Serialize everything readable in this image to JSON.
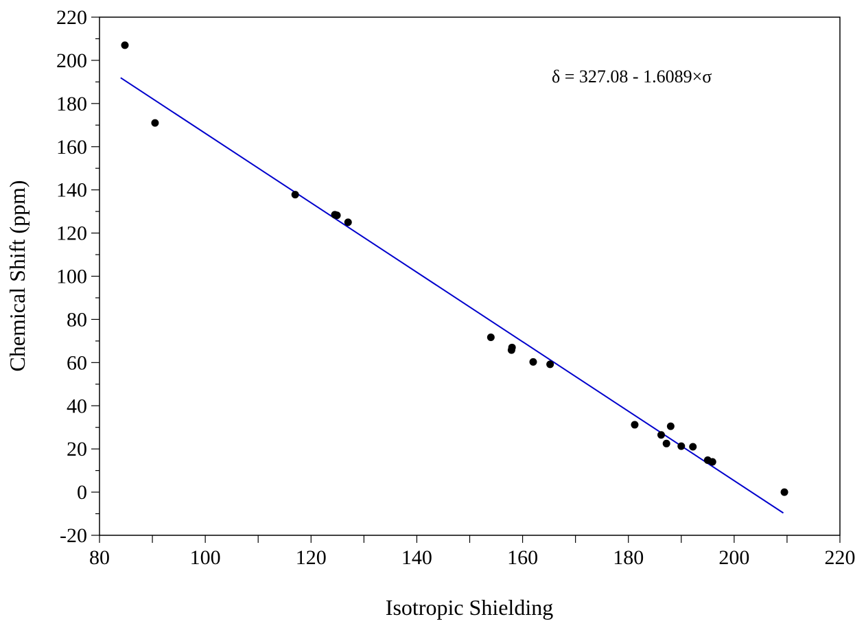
{
  "chart_data": {
    "type": "scatter",
    "xlabel": "Isotropic Shielding",
    "ylabel": "Chemical Shift (ppm)",
    "xlim": [
      80,
      220
    ],
    "ylim": [
      -20,
      220
    ],
    "x_ticks": [
      "80",
      "100",
      "120",
      "140",
      "160",
      "180",
      "200",
      "220"
    ],
    "y_ticks": [
      "-20",
      "0",
      "20",
      "40",
      "60",
      "80",
      "100",
      "120",
      "140",
      "160",
      "180",
      "200",
      "220"
    ],
    "annotation": "δ = 327.08 - 1.6089×σ",
    "grid": false,
    "point_color": "#000000",
    "line_color": "#0000cc",
    "points": [
      [
        84.8,
        207.0
      ],
      [
        90.5,
        171.0
      ],
      [
        117.0,
        137.8
      ],
      [
        124.5,
        128.5
      ],
      [
        124.9,
        128.2
      ],
      [
        127.0,
        125.0
      ],
      [
        154.0,
        71.7
      ],
      [
        158.0,
        67.0
      ],
      [
        157.9,
        65.8
      ],
      [
        162.0,
        60.3
      ],
      [
        165.2,
        59.2
      ],
      [
        181.2,
        31.2
      ],
      [
        186.2,
        26.5
      ],
      [
        187.2,
        22.5
      ],
      [
        188.0,
        30.5
      ],
      [
        190.0,
        21.3
      ],
      [
        192.2,
        21.0
      ],
      [
        195.0,
        14.8
      ],
      [
        195.9,
        14.0
      ],
      [
        209.5,
        0.0
      ]
    ],
    "fit": {
      "intercept": 327.08,
      "slope": -1.6089,
      "x_range": [
        84,
        209.3
      ]
    }
  }
}
